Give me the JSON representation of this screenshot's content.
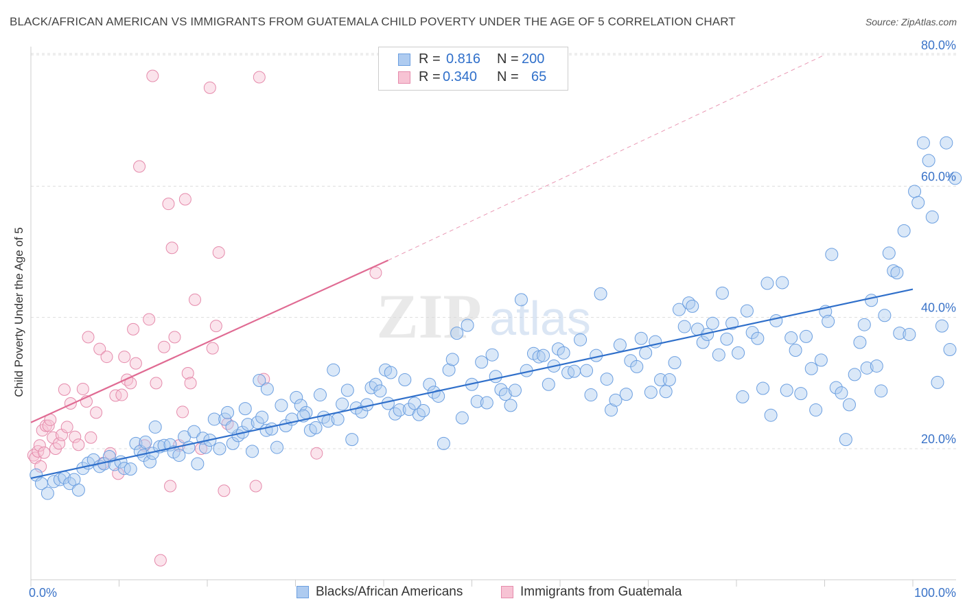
{
  "title": "BLACK/AFRICAN AMERICAN VS IMMIGRANTS FROM GUATEMALA CHILD POVERTY UNDER THE AGE OF 5 CORRELATION CHART",
  "source": "Source: ZipAtlas.com",
  "watermark": {
    "zip": "ZIP",
    "atlas": "atlas"
  },
  "legend_top": {
    "rows": [
      {
        "r_label": "R =",
        "r_value": "0.816",
        "n_label": "N =",
        "n_value": "200"
      },
      {
        "r_label": "R =",
        "r_value": "0.340",
        "n_label": "N =",
        "n_value": "65"
      }
    ]
  },
  "colors": {
    "blue_fill": "#aecbf0",
    "blue_stroke": "#6a9ee0",
    "blue_line": "#2f6fca",
    "pink_fill": "#f7c3d4",
    "pink_stroke": "#e58aab",
    "pink_line": "#e06b93",
    "grid": "#dddddd",
    "tick_label": "#3a73c8"
  },
  "chart_data": {
    "type": "scatter",
    "title": "BLACK/AFRICAN AMERICAN VS IMMIGRANTS FROM GUATEMALA CHILD POVERTY UNDER THE AGE OF 5 CORRELATION CHART",
    "xlabel": "",
    "ylabel": "Child Poverty Under the Age of 5",
    "xlim": [
      0,
      100
    ],
    "ylim": [
      0,
      80
    ],
    "x_tick_labels": [
      "0.0%",
      "100.0%"
    ],
    "y_ticks": [
      20,
      40,
      60,
      80
    ],
    "y_tick_labels": [
      "20.0%",
      "40.0%",
      "60.0%",
      "80.0%"
    ],
    "grid": true,
    "legend_position": "bottom",
    "series": [
      {
        "name": "Blacks/African Americans",
        "color": "#6a9ee0",
        "R": 0.816,
        "N": 200,
        "trend": {
          "x": [
            0,
            100
          ],
          "y": [
            15.5,
            44.3
          ],
          "dashed_extension": false
        },
        "points": [
          [
            0.6,
            16.0
          ],
          [
            1.2,
            14.7
          ],
          [
            1.9,
            13.2
          ],
          [
            2.6,
            15.0
          ],
          [
            3.3,
            15.3
          ],
          [
            3.8,
            15.6
          ],
          [
            4.4,
            14.7
          ],
          [
            4.9,
            15.3
          ],
          [
            5.4,
            13.7
          ],
          [
            5.9,
            17.0
          ],
          [
            6.5,
            17.8
          ],
          [
            7.1,
            18.3
          ],
          [
            7.8,
            17.3
          ],
          [
            8.3,
            17.7
          ],
          [
            8.9,
            18.8
          ],
          [
            9.5,
            17.6
          ],
          [
            10.2,
            18.0
          ],
          [
            10.6,
            17.0
          ],
          [
            11.3,
            16.9
          ],
          [
            11.9,
            20.8
          ],
          [
            12.4,
            19.6
          ],
          [
            12.8,
            19.0
          ],
          [
            13.5,
            18.0
          ],
          [
            13.8,
            19.3
          ],
          [
            14.1,
            23.3
          ],
          [
            14.6,
            20.3
          ],
          [
            15.1,
            20.5
          ],
          [
            15.8,
            20.6
          ],
          [
            16.2,
            19.5
          ],
          [
            16.8,
            19.0
          ],
          [
            17.4,
            21.8
          ],
          [
            17.9,
            20.2
          ],
          [
            18.5,
            22.6
          ],
          [
            18.9,
            17.7
          ],
          [
            19.5,
            21.6
          ],
          [
            19.8,
            20.2
          ],
          [
            20.3,
            21.3
          ],
          [
            20.8,
            24.5
          ],
          [
            21.4,
            20.0
          ],
          [
            22.0,
            24.5
          ],
          [
            22.3,
            25.5
          ],
          [
            22.9,
            20.8
          ],
          [
            23.5,
            22.0
          ],
          [
            24.0,
            22.5
          ],
          [
            24.6,
            23.7
          ],
          [
            25.1,
            19.6
          ],
          [
            25.7,
            24.0
          ],
          [
            26.2,
            24.8
          ],
          [
            26.7,
            22.8
          ],
          [
            27.3,
            23.0
          ],
          [
            27.9,
            20.2
          ],
          [
            28.4,
            26.6
          ],
          [
            28.9,
            23.5
          ],
          [
            29.6,
            24.5
          ],
          [
            30.1,
            27.8
          ],
          [
            30.6,
            26.6
          ],
          [
            31.2,
            25.5
          ],
          [
            31.7,
            22.8
          ],
          [
            32.3,
            23.2
          ],
          [
            32.8,
            28.2
          ],
          [
            33.2,
            24.8
          ],
          [
            33.7,
            24.2
          ],
          [
            34.3,
            32.0
          ],
          [
            34.8,
            24.5
          ],
          [
            35.3,
            26.8
          ],
          [
            35.9,
            28.9
          ],
          [
            36.4,
            21.4
          ],
          [
            36.9,
            26.2
          ],
          [
            37.5,
            25.6
          ],
          [
            38.1,
            26.7
          ],
          [
            38.6,
            29.3
          ],
          [
            39.1,
            29.8
          ],
          [
            39.6,
            28.8
          ],
          [
            40.2,
            32.0
          ],
          [
            40.8,
            31.6
          ],
          [
            41.3,
            25.3
          ],
          [
            41.8,
            25.9
          ],
          [
            42.4,
            30.5
          ],
          [
            42.9,
            26.0
          ],
          [
            43.5,
            26.9
          ],
          [
            44.0,
            25.2
          ],
          [
            44.5,
            25.8
          ],
          [
            45.2,
            29.8
          ],
          [
            45.7,
            28.6
          ],
          [
            46.2,
            28.0
          ],
          [
            46.8,
            20.8
          ],
          [
            47.4,
            32.0
          ],
          [
            47.8,
            33.6
          ],
          [
            48.3,
            37.6
          ],
          [
            48.9,
            24.7
          ],
          [
            49.5,
            38.8
          ],
          [
            50.0,
            29.8
          ],
          [
            50.6,
            27.2
          ],
          [
            51.1,
            33.2
          ],
          [
            51.7,
            27.0
          ],
          [
            52.3,
            34.3
          ],
          [
            52.7,
            31.0
          ],
          [
            53.3,
            29.0
          ],
          [
            53.8,
            28.3
          ],
          [
            54.4,
            26.6
          ],
          [
            54.9,
            28.9
          ],
          [
            55.6,
            42.7
          ],
          [
            56.2,
            31.9
          ],
          [
            57.0,
            34.5
          ],
          [
            57.6,
            34.0
          ],
          [
            58.1,
            34.2
          ],
          [
            58.7,
            29.8
          ],
          [
            59.3,
            32.6
          ],
          [
            59.8,
            35.2
          ],
          [
            60.4,
            34.6
          ],
          [
            60.9,
            31.6
          ],
          [
            61.6,
            31.8
          ],
          [
            62.3,
            36.6
          ],
          [
            63.0,
            31.9
          ],
          [
            63.5,
            28.2
          ],
          [
            64.1,
            34.2
          ],
          [
            64.6,
            43.6
          ],
          [
            65.3,
            30.6
          ],
          [
            65.8,
            25.9
          ],
          [
            66.3,
            27.4
          ],
          [
            66.8,
            35.8
          ],
          [
            67.5,
            28.3
          ],
          [
            68.0,
            33.4
          ],
          [
            68.7,
            32.5
          ],
          [
            69.2,
            36.8
          ],
          [
            69.7,
            34.6
          ],
          [
            70.3,
            28.6
          ],
          [
            70.8,
            36.3
          ],
          [
            71.4,
            30.5
          ],
          [
            72.0,
            28.7
          ],
          [
            72.4,
            30.5
          ],
          [
            73.0,
            33.1
          ],
          [
            73.5,
            41.2
          ],
          [
            74.1,
            38.6
          ],
          [
            74.6,
            42.2
          ],
          [
            75.0,
            41.7
          ],
          [
            75.6,
            38.2
          ],
          [
            76.2,
            36.2
          ],
          [
            76.7,
            37.4
          ],
          [
            77.3,
            39.1
          ],
          [
            78.0,
            34.3
          ],
          [
            78.4,
            43.7
          ],
          [
            78.9,
            36.7
          ],
          [
            79.5,
            39.1
          ],
          [
            80.2,
            34.6
          ],
          [
            80.7,
            27.9
          ],
          [
            81.2,
            41.0
          ],
          [
            81.8,
            37.7
          ],
          [
            82.4,
            36.8
          ],
          [
            83.0,
            29.2
          ],
          [
            83.5,
            45.2
          ],
          [
            83.9,
            25.1
          ],
          [
            84.5,
            39.5
          ],
          [
            85.2,
            45.3
          ],
          [
            85.7,
            28.9
          ],
          [
            86.2,
            36.9
          ],
          [
            86.7,
            35.0
          ],
          [
            87.3,
            28.4
          ],
          [
            87.9,
            37.1
          ],
          [
            88.5,
            32.2
          ],
          [
            89.0,
            25.9
          ],
          [
            89.6,
            33.5
          ],
          [
            90.1,
            40.9
          ],
          [
            90.4,
            39.4
          ],
          [
            90.8,
            49.6
          ],
          [
            91.3,
            29.3
          ],
          [
            91.9,
            28.5
          ],
          [
            92.4,
            21.4
          ],
          [
            92.8,
            26.7
          ],
          [
            93.4,
            31.3
          ],
          [
            94.0,
            36.2
          ],
          [
            94.5,
            38.9
          ],
          [
            94.8,
            32.3
          ],
          [
            95.3,
            42.6
          ],
          [
            95.9,
            32.6
          ],
          [
            96.4,
            28.8
          ],
          [
            96.8,
            40.3
          ],
          [
            97.3,
            49.8
          ],
          [
            97.8,
            47.1
          ],
          [
            98.2,
            46.8
          ],
          [
            98.5,
            37.6
          ],
          [
            99.0,
            53.2
          ],
          [
            99.6,
            37.4
          ],
          [
            100.2,
            59.2
          ],
          [
            100.6,
            57.5
          ],
          [
            101.2,
            66.6
          ],
          [
            101.8,
            63.9
          ],
          [
            102.2,
            55.3
          ],
          [
            102.8,
            30.1
          ],
          [
            103.3,
            38.7
          ],
          [
            103.8,
            66.6
          ],
          [
            104.2,
            35.1
          ],
          [
            104.8,
            61.2
          ],
          [
            30.9,
            25.0
          ],
          [
            13.0,
            21.0
          ],
          [
            24.3,
            26.1
          ],
          [
            25.9,
            30.4
          ],
          [
            40.5,
            26.9
          ],
          [
            26.8,
            29.1
          ],
          [
            22.8,
            23.3
          ]
        ]
      },
      {
        "name": "Immigrants from Guatemala",
        "color": "#e58aab",
        "R": 0.34,
        "N": 65,
        "trend": {
          "x": [
            0,
            40.5,
            90
          ],
          "y": [
            24.0,
            48.7,
            80.0
          ],
          "dashed_extension": true
        },
        "points": [
          [
            0.3,
            19.0
          ],
          [
            0.5,
            18.6
          ],
          [
            0.8,
            19.6
          ],
          [
            1.0,
            20.5
          ],
          [
            1.3,
            22.8
          ],
          [
            1.5,
            19.4
          ],
          [
            1.7,
            23.5
          ],
          [
            2.0,
            23.5
          ],
          [
            2.2,
            24.4
          ],
          [
            2.5,
            21.7
          ],
          [
            2.8,
            20.0
          ],
          [
            3.2,
            20.8
          ],
          [
            3.5,
            22.1
          ],
          [
            3.8,
            29.0
          ],
          [
            4.1,
            23.3
          ],
          [
            4.5,
            26.9
          ],
          [
            5.0,
            21.8
          ],
          [
            5.4,
            20.6
          ],
          [
            5.9,
            29.1
          ],
          [
            6.3,
            27.2
          ],
          [
            6.5,
            37.0
          ],
          [
            6.8,
            21.7
          ],
          [
            7.4,
            25.5
          ],
          [
            7.8,
            35.2
          ],
          [
            8.2,
            17.8
          ],
          [
            8.6,
            34.0
          ],
          [
            9.0,
            19.3
          ],
          [
            9.6,
            28.1
          ],
          [
            9.9,
            16.2
          ],
          [
            10.3,
            28.2
          ],
          [
            10.6,
            34.0
          ],
          [
            10.9,
            30.5
          ],
          [
            11.3,
            30.0
          ],
          [
            11.6,
            38.2
          ],
          [
            11.9,
            33.0
          ],
          [
            12.3,
            63.0
          ],
          [
            12.9,
            20.5
          ],
          [
            13.4,
            39.7
          ],
          [
            13.8,
            76.8
          ],
          [
            14.2,
            30.0
          ],
          [
            14.7,
            3.0
          ],
          [
            15.1,
            35.5
          ],
          [
            15.6,
            57.3
          ],
          [
            15.8,
            14.3
          ],
          [
            16.0,
            50.6
          ],
          [
            16.3,
            37.0
          ],
          [
            16.8,
            20.5
          ],
          [
            17.2,
            25.6
          ],
          [
            17.5,
            58.0
          ],
          [
            17.8,
            31.5
          ],
          [
            18.1,
            30.0
          ],
          [
            18.6,
            42.7
          ],
          [
            19.3,
            20.0
          ],
          [
            20.3,
            75.0
          ],
          [
            20.6,
            35.3
          ],
          [
            21.0,
            38.7
          ],
          [
            21.3,
            49.9
          ],
          [
            21.9,
            13.6
          ],
          [
            22.3,
            23.8
          ],
          [
            25.5,
            14.3
          ],
          [
            25.9,
            76.6
          ],
          [
            26.4,
            30.6
          ],
          [
            32.4,
            19.3
          ],
          [
            39.1,
            46.8
          ],
          [
            1.1,
            17.3
          ]
        ]
      }
    ]
  }
}
